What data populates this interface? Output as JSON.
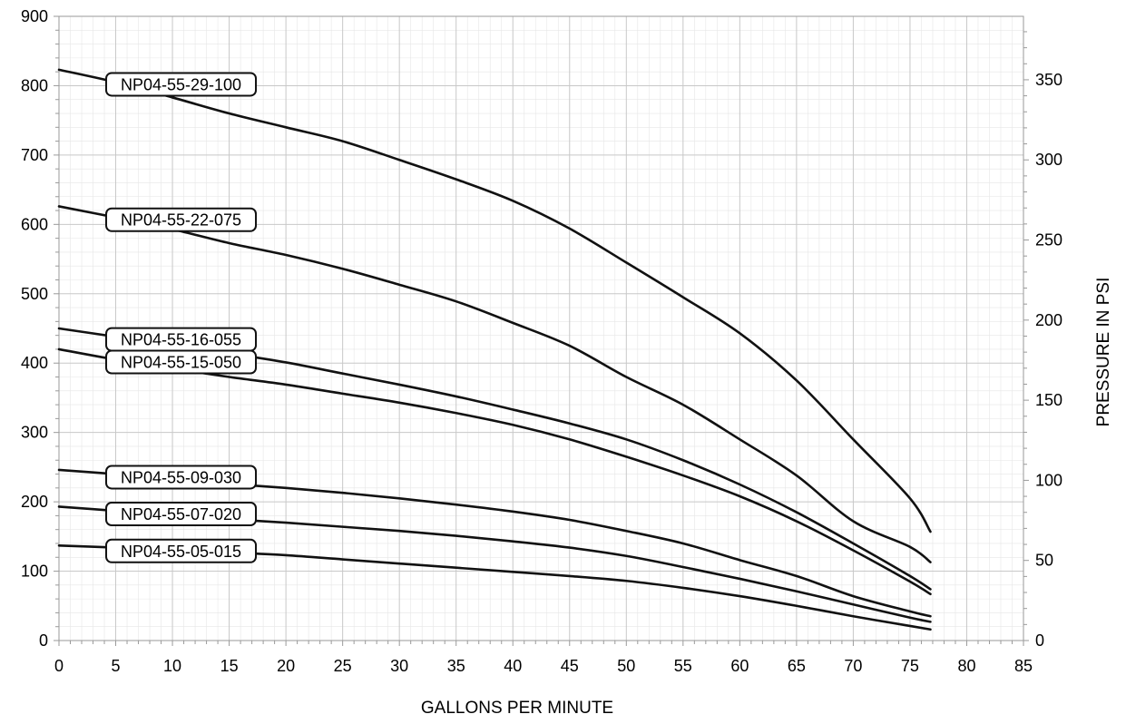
{
  "chart_data": {
    "type": "line",
    "xlabel": "GALLONS PER MINUTE",
    "ylabel_left": "",
    "ylabel_right": "PRESSURE IN PSI",
    "xlim": [
      0,
      85
    ],
    "ylim_left": [
      0,
      900
    ],
    "ylim_right": [
      0,
      389.6
    ],
    "x_ticks": [
      "0",
      "5",
      "10",
      "15",
      "20",
      "25",
      "30",
      "35",
      "40",
      "45",
      "50",
      "55",
      "60",
      "65",
      "70",
      "75",
      "80",
      "85"
    ],
    "y_ticks_left": [
      "0",
      "100",
      "200",
      "300",
      "400",
      "500",
      "600",
      "700",
      "800",
      "900"
    ],
    "y_ticks_right": [
      "0",
      "50",
      "100",
      "150",
      "200",
      "250",
      "300",
      "350"
    ],
    "grid": true,
    "colors": {
      "line": "#111111",
      "grid": "#c8c8c8",
      "axis": "#9a9a9a"
    },
    "series": [
      {
        "name": "NP04-55-29-100",
        "x": [
          0,
          5,
          10,
          15,
          20,
          25,
          30,
          35,
          40,
          45,
          50,
          55,
          60,
          65,
          70,
          75,
          76.8
        ],
        "y": [
          823,
          805,
          783,
          760,
          740,
          720,
          693,
          665,
          634,
          594,
          545,
          495,
          443,
          375,
          290,
          205,
          157
        ]
      },
      {
        "name": "NP04-55-22-075",
        "x": [
          0,
          5,
          10,
          15,
          20,
          25,
          30,
          35,
          40,
          45,
          50,
          55,
          60,
          65,
          70,
          75,
          76.8
        ],
        "y": [
          626,
          610,
          593,
          573,
          556,
          536,
          513,
          489,
          458,
          425,
          380,
          340,
          290,
          238,
          172,
          135,
          113
        ]
      },
      {
        "name": "NP04-55-16-055",
        "x": [
          0,
          5,
          10,
          15,
          20,
          25,
          30,
          35,
          40,
          45,
          50,
          55,
          60,
          65,
          70,
          75,
          76.8
        ],
        "y": [
          450,
          438,
          426,
          414,
          401,
          385,
          369,
          352,
          333,
          313,
          290,
          260,
          225,
          185,
          140,
          93,
          74
        ]
      },
      {
        "name": "NP04-55-15-050",
        "x": [
          0,
          5,
          10,
          15,
          20,
          25,
          30,
          35,
          40,
          45,
          50,
          55,
          60,
          65,
          70,
          75,
          76.8
        ],
        "y": [
          420,
          405,
          392,
          380,
          369,
          356,
          343,
          328,
          311,
          290,
          265,
          238,
          208,
          172,
          130,
          85,
          67
        ]
      },
      {
        "name": "NP04-55-09-030",
        "x": [
          0,
          5,
          10,
          15,
          20,
          25,
          30,
          35,
          40,
          45,
          50,
          55,
          60,
          65,
          70,
          75,
          76.8
        ],
        "y": [
          246,
          240,
          233,
          226,
          220,
          213,
          205,
          196,
          186,
          174,
          158,
          140,
          116,
          93,
          64,
          42,
          35
        ]
      },
      {
        "name": "NP04-55-07-020",
        "x": [
          0,
          5,
          10,
          15,
          20,
          25,
          30,
          35,
          40,
          45,
          50,
          55,
          60,
          65,
          70,
          75,
          76.8
        ],
        "y": [
          193,
          187,
          181,
          175,
          170,
          164,
          158,
          151,
          143,
          134,
          122,
          106,
          89,
          71,
          52,
          33,
          27
        ]
      },
      {
        "name": "NP04-55-05-015",
        "x": [
          0,
          5,
          10,
          15,
          20,
          25,
          30,
          35,
          40,
          45,
          50,
          55,
          60,
          65,
          70,
          75,
          76.8
        ],
        "y": [
          137,
          134,
          131,
          127,
          123,
          117,
          111,
          105,
          99,
          93,
          86,
          76,
          64,
          50,
          35,
          21,
          16
        ]
      }
    ],
    "labels": [
      {
        "text": "NP04-55-29-100",
        "x": 4.4,
        "series": 0
      },
      {
        "text": "NP04-55-22-075",
        "x": 4.4,
        "series": 1
      },
      {
        "text": "NP04-55-16-055",
        "x": 4.4,
        "series": 2
      },
      {
        "text": "NP04-55-15-050",
        "x": 4.4,
        "series": 3
      },
      {
        "text": "NP04-55-09-030",
        "x": 4.4,
        "series": 4
      },
      {
        "text": "NP04-55-07-020",
        "x": 4.4,
        "series": 5
      },
      {
        "text": "NP04-55-05-015",
        "x": 4.4,
        "series": 6
      }
    ]
  }
}
